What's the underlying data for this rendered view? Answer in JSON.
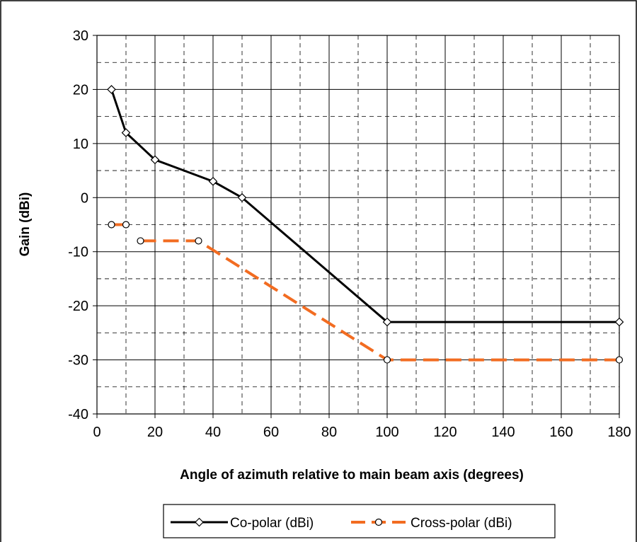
{
  "chart_data": {
    "type": "line",
    "title": "",
    "xlabel": "Angle of azimuth relative to main beam axis (degrees)",
    "ylabel": "Gain (dBi)",
    "xlim": [
      0,
      180
    ],
    "ylim": [
      -40,
      30
    ],
    "x_ticks": [
      0,
      20,
      40,
      60,
      80,
      100,
      120,
      140,
      160,
      180
    ],
    "y_ticks": [
      30,
      20,
      10,
      0,
      -10,
      -20,
      -30,
      -40
    ],
    "x_tick_labels": [
      "0",
      "20",
      "40",
      "60",
      "80",
      "100",
      "120",
      "140",
      "160",
      "180"
    ],
    "y_tick_labels": [
      "30",
      "20",
      "10",
      "0",
      "-10",
      "-20",
      "-30",
      "-40"
    ],
    "grid": true,
    "minor_grid": "dashed",
    "legend_position": "bottom",
    "series": [
      {
        "name": "Co-polar (dBi)",
        "color": "#000000",
        "line_style": "solid",
        "marker": "diamond",
        "segments": [
          [
            [
              5,
              20
            ],
            [
              10,
              12
            ],
            [
              20,
              7
            ],
            [
              40,
              3
            ],
            [
              50,
              0
            ],
            [
              100,
              -23
            ],
            [
              180,
              -23
            ]
          ]
        ]
      },
      {
        "name": "Cross-polar (dBi)",
        "color": "#F26C21",
        "line_style": "dashed",
        "marker": "circle",
        "segments": [
          [
            [
              5,
              -5
            ],
            [
              10,
              -5
            ]
          ],
          [
            [
              15,
              -8
            ],
            [
              35,
              -8
            ],
            [
              100,
              -30
            ],
            [
              180,
              -30
            ]
          ]
        ]
      }
    ]
  }
}
